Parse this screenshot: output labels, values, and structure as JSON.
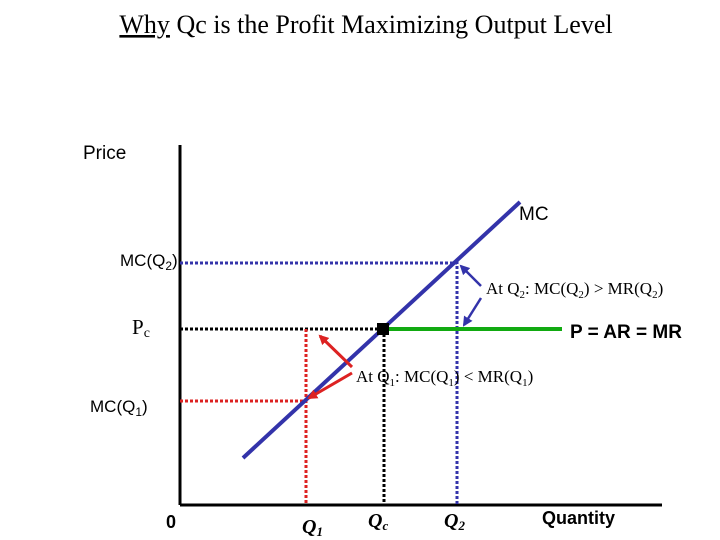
{
  "slide": {
    "title_underlined": "Why",
    "title_rest": " Qc is the Profit Maximizing Output Level"
  },
  "axes": {
    "y_label": "Price",
    "x_label": "Quantity",
    "origin_label": "0"
  },
  "curves": {
    "mc_label": "MC",
    "demand_label": "P = AR = MR"
  },
  "price_levels": {
    "mc_q2": {
      "base": "MC(Q",
      "sub": "2",
      "close": ")"
    },
    "pc": {
      "base": "P",
      "sub": "c"
    },
    "mc_q1": {
      "base": "MC(Q",
      "sub": "1",
      "close": ")"
    }
  },
  "quantities": {
    "q1": {
      "base": "Q",
      "sub": "1"
    },
    "qc": {
      "base": "Q",
      "sub": "c"
    },
    "q2": {
      "base": "Q",
      "sub": "2"
    }
  },
  "annotations": {
    "at_q2": {
      "p1": "At Q",
      "s1": "2",
      "p2": ": MC(Q",
      "s2": "2",
      "p3": ") > MR(Q",
      "s3": "2",
      "p4": ")"
    },
    "at_q1": {
      "p1": "At Q",
      "s1": "1",
      "p2": ": MC(Q",
      "s2": "1",
      "p3": ") < MR(Q",
      "s3": "1",
      "p4": ")"
    }
  },
  "colors": {
    "axis": "#000000",
    "mc_line": "#3333aa",
    "mr_line": "#11aa11",
    "q1_guides": "#dd2222",
    "q2_guides": "#3333aa",
    "qc_guides": "#000000"
  }
}
